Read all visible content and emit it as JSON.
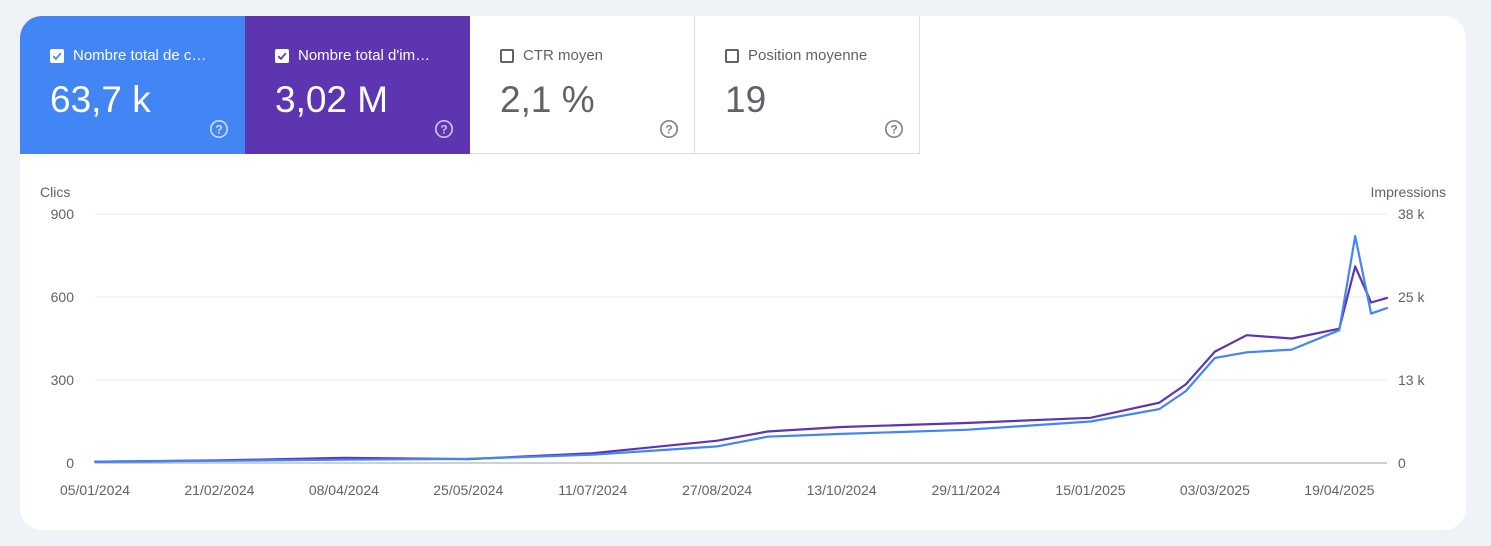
{
  "metrics": [
    {
      "label": "Nombre total de c…",
      "value": "63,7 k",
      "checked": true,
      "color": "#4285f4"
    },
    {
      "label": "Nombre total d'im…",
      "value": "3,02 M",
      "checked": true,
      "color": "#5e35b1"
    },
    {
      "label": "CTR moyen",
      "value": "2,1 %",
      "checked": false
    },
    {
      "label": "Position moyenne",
      "value": "19",
      "checked": false
    }
  ],
  "chart_data": {
    "type": "line",
    "left_axis_title": "Clics",
    "right_axis_title": "Impressions",
    "left_ticks": [
      "900",
      "600",
      "300",
      "0"
    ],
    "right_ticks": [
      "38 k",
      "25 k",
      "13 k",
      "0"
    ],
    "ylim_left": [
      0,
      900
    ],
    "ylim_right": [
      0,
      38000
    ],
    "x_ticks": [
      "05/01/2024",
      "21/02/2024",
      "08/04/2024",
      "25/05/2024",
      "11/07/2024",
      "27/08/2024",
      "13/10/2024",
      "29/11/2024",
      "15/01/2025",
      "03/03/2025",
      "19/04/2025"
    ],
    "x": [
      "05/01/2024",
      "21/02/2024",
      "08/04/2024",
      "25/05/2024",
      "11/07/2024",
      "27/08/2024",
      "15/09/2024",
      "13/10/2024",
      "29/11/2024",
      "15/01/2025",
      "10/02/2025",
      "20/02/2025",
      "03/03/2025",
      "15/03/2025",
      "01/04/2025",
      "19/04/2025",
      "25/04/2025",
      "01/05/2025",
      "07/05/2025"
    ],
    "series": [
      {
        "name": "Clics",
        "axis": "left",
        "color": "#4285f4",
        "values": [
          5,
          8,
          12,
          15,
          30,
          60,
          95,
          105,
          120,
          150,
          195,
          260,
          380,
          400,
          410,
          480,
          820,
          540,
          560
        ]
      },
      {
        "name": "Impressions",
        "axis": "right",
        "color": "#5e35b1",
        "values": [
          200,
          400,
          800,
          600,
          1500,
          3400,
          4800,
          5500,
          6100,
          6900,
          9200,
          12000,
          17000,
          19500,
          19000,
          20500,
          30000,
          24500,
          25200
        ]
      }
    ]
  }
}
